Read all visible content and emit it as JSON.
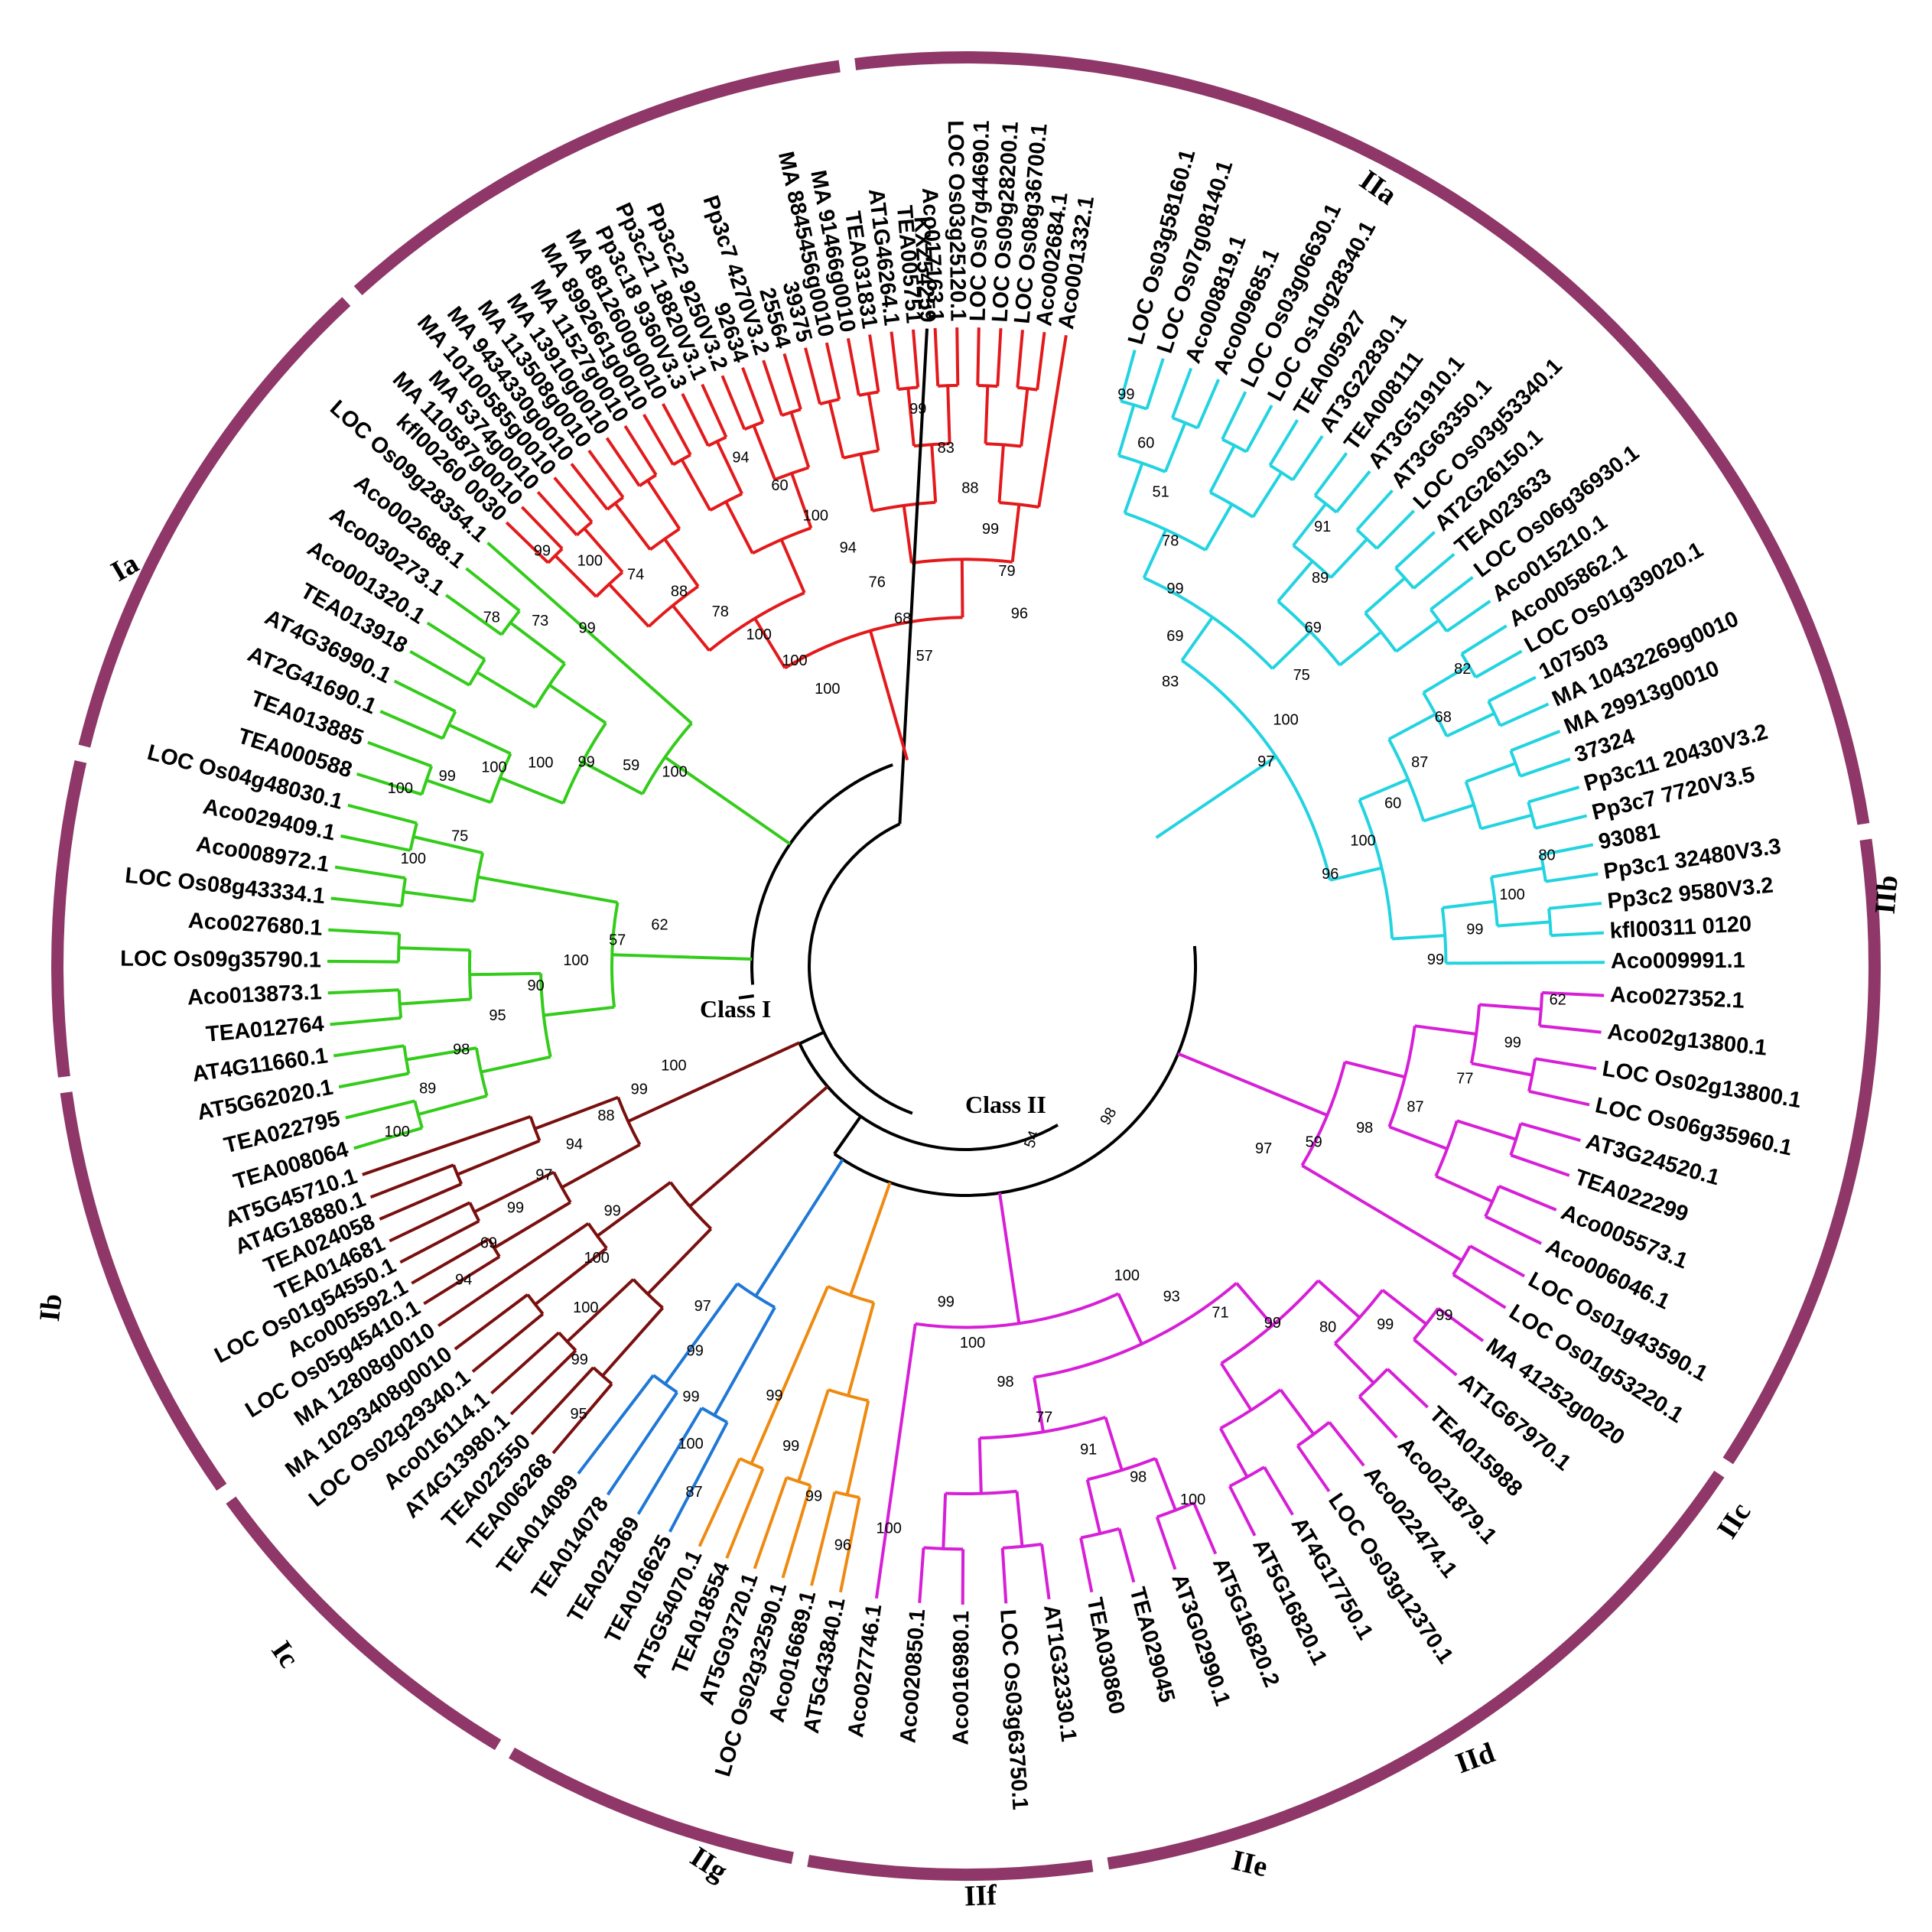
{
  "colors": {
    "ring": "#8e3768",
    "Ia": "#e31a1c",
    "Ib": "#33cc1a",
    "Ic": "#33cc1a",
    "IIa": "#22d3e0",
    "IIb": "#d61fd6",
    "IIc": "#d61fd6",
    "IIg": "#7a0f0f",
    "IIf": "#7a0f0f",
    "IIe": "#1f78d6",
    "IId": "#ee8a10",
    "black": "#000000"
  },
  "class_labels": {
    "class1": "Class I",
    "class2": "Class II"
  },
  "clades": [
    {
      "id": "IIa",
      "label": "IIa",
      "color": "#22d3e0",
      "leaves": [
        "LOC Os03g58160.1",
        "LOC Os07g08140.1",
        "Aco008819.1",
        "Aco009685.1",
        "LOC Os03g06630.1",
        "LOC Os10g28340.1",
        "TEA005927",
        "AT3G22830.1",
        "TEA008111",
        "AT3G51910.1",
        "AT3G63350.1",
        "LOC Os03g53340.1",
        "AT2G26150.1",
        "TEA023633",
        "LOC Os06g36930.1",
        "Aco015210.1",
        "Aco005862.1",
        "LOC Os01g39020.1",
        "107503",
        "MA 10432269g0010",
        "MA 29913g0010",
        "37324",
        "Pp3c11 20430V3.2",
        "Pp3c7 7720V3.5",
        "93081",
        "Pp3c1 32480V3.3",
        "Pp3c2 9580V3.2",
        "kfl00311 0120",
        "Aco009991.1"
      ],
      "bootstraps": [
        "99",
        "60",
        "51",
        "78",
        "99",
        "69",
        "83",
        "91",
        "89",
        "69",
        "75",
        "100",
        "97",
        "82",
        "68",
        "87",
        "60",
        "100",
        "96",
        "80",
        "100",
        "99",
        "99"
      ]
    },
    {
      "id": "IIb",
      "label": "IIb",
      "color": "#d61fd6",
      "leaves": [
        "Aco027352.1",
        "Aco02g13800.1",
        "LOC Os02g13800.1",
        "LOC Os06g35960.1",
        "AT3G24520.1",
        "TEA022299",
        "Aco005573.1",
        "Aco006046.1",
        "LOC Os01g43590.1",
        "LOC Os01g53220.1"
      ],
      "bootstraps": [
        "62",
        "99",
        "77",
        "87",
        "98",
        "59",
        "97"
      ]
    },
    {
      "id": "IIc",
      "label": "IIc",
      "color": "#d61fd6",
      "leaves": [
        "MA 41252g0020",
        "AT1G67970.1",
        "TEA015988",
        "Aco021879.1",
        "Aco022474.1",
        "LOC Os03g12370.1",
        "AT4G17750.1",
        "AT5G16820.1",
        "AT5G16820.2",
        "AT3G02990.1",
        "TEA029045",
        "TEA030860",
        "AT1G32330.1",
        "LOC Os03g63750.1",
        "Aco016980.1",
        "Aco020850.1",
        "Aco027746.1"
      ],
      "bootstraps": [
        "99",
        "99",
        "80",
        "99",
        "71",
        "93",
        "100",
        "100",
        "98",
        "91",
        "77",
        "98",
        "100",
        "99",
        "100"
      ]
    },
    {
      "id": "IId",
      "label": "IId",
      "color": "#ee8a10",
      "leaves": [
        "AT5G43840.1",
        "Aco016689.1",
        "LOC Os02g32590.1",
        "AT5G03720.1",
        "TEA018554",
        "AT5G54070.1"
      ],
      "bootstraps": [
        "96",
        "99",
        "99",
        "99"
      ]
    },
    {
      "id": "IIe",
      "label": "IIe",
      "color": "#1f78d6",
      "leaves": [
        "TEA016625",
        "TEA021869",
        "TEA014078",
        "TEA014089"
      ],
      "bootstraps": [
        "87",
        "100",
        "99",
        "99",
        "97"
      ]
    },
    {
      "id": "IIf",
      "label": "IIf",
      "color": "#7a0f0f",
      "leaves": [
        "TEA006268",
        "TEA022550",
        "AT4G13980.1",
        "Aco016114.1",
        "LOC Os02g29340.1",
        "MA 10293408g0010",
        "MA 12808g0010"
      ],
      "bootstraps": [
        "95",
        "99",
        "100",
        "100",
        "99"
      ]
    },
    {
      "id": "IIg",
      "label": "IIg",
      "color": "#7a0f0f",
      "leaves": [
        "LOC Os05g45410.1",
        "Aco005592.1",
        "LOC Os01g54550.1",
        "TEA014681",
        "TEA024058",
        "AT4G18880.1",
        "AT5G45710.1"
      ],
      "bootstraps": [
        "94",
        "69",
        "99",
        "97",
        "94",
        "88",
        "99",
        "100"
      ]
    },
    {
      "id": "Ic",
      "label": "Ic",
      "color": "#33cc1a",
      "leaves": [
        "TEA008064",
        "TEA022795",
        "AT5G62020.1",
        "AT4G11660.1",
        "TEA012764",
        "Aco013873.1",
        "LOC Os09g35790.1",
        "Aco027680.1",
        "LOC Os08g43334.1",
        "Aco008972.1",
        "Aco029409.1",
        "LOC Os04g48030.1"
      ],
      "bootstraps": [
        "100",
        "89",
        "98",
        "95",
        "90",
        "100",
        "57",
        "62",
        "100",
        "75"
      ]
    },
    {
      "id": "Ib",
      "label": "Ib",
      "color": "#33cc1a",
      "leaves": [
        "TEA000588",
        "TEA013885",
        "AT2G41690.1",
        "AT4G36990.1",
        "TEA013918",
        "Aco001320.1",
        "Aco030273.1",
        "Aco002688.1",
        "LOC Os09g28354.1"
      ],
      "bootstraps": [
        "100",
        "99",
        "100",
        "100",
        "99",
        "59",
        "100",
        "78",
        "73",
        "99"
      ]
    },
    {
      "id": "Ia",
      "label": "Ia",
      "color": "#e31a1c",
      "leaves": [
        "kfl00260 0030",
        "MA 110587g0010",
        "MA 5374g0010",
        "MA 10100585g0010",
        "MA 9434330g0010",
        "MA 113508g0010",
        "MA 13910g0010",
        "MA 11527g0010",
        "MA 8992661g0010",
        "MA 8812600g0010",
        "Pp3c18 9360V3.3",
        "Pp3c21 18820V3.1",
        "Pp3c22 9250V3.2",
        "92634",
        "Pp3c7 4270V3.2",
        "25564",
        "39375",
        "MA 8845456g0010",
        "MA 91466g0010",
        "TEA031831",
        "AT1G46264.1",
        "TEA005751",
        "Aco017163.1",
        "LOC Os03g25120.1",
        "LOC Os07g44690.1",
        "LOC Os09g28200.1",
        "LOC Os08g36700.1",
        "Aco002684.1",
        "Aco001332.1"
      ],
      "bootstraps": [
        "99",
        "100",
        "74",
        "88",
        "78",
        "100",
        "100",
        "100",
        "94",
        "60",
        "100",
        "94",
        "76",
        "68",
        "57",
        "99",
        "83",
        "88",
        "99",
        "79",
        "96"
      ]
    }
  ],
  "outgroup": {
    "leaf": "KXZ54259",
    "color": "#000000"
  },
  "deep_bootstraps": [
    "54",
    "98"
  ]
}
